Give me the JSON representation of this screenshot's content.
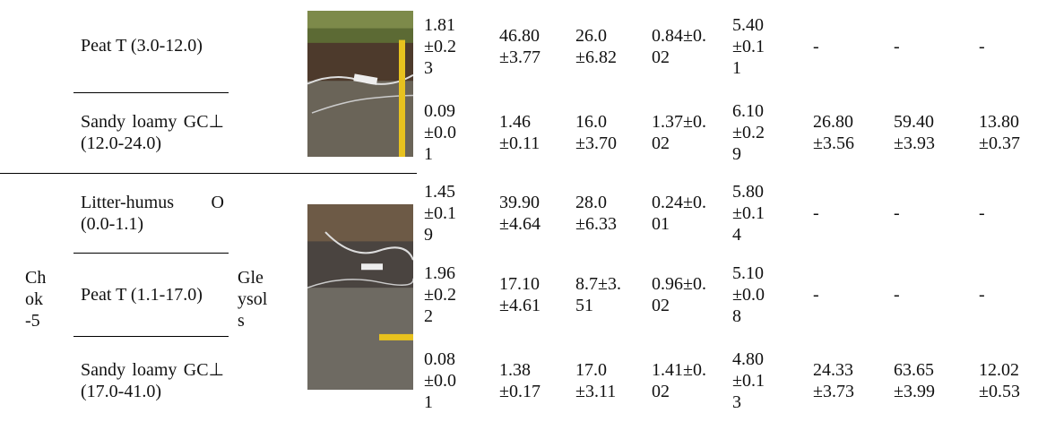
{
  "table": {
    "groups": [
      {
        "rows": [
          {
            "horizon": "Peat T (3.0-12.0)",
            "values": [
              "1.81±0.23",
              "46.80±3.77",
              "26.0±6.82",
              "0.84±0.02",
              "5.40±0.11",
              "-",
              "-",
              "-"
            ]
          },
          {
            "horizon": "Sandy loamy GC⊥ (12.0-24.0)",
            "values": [
              "0.09±0.01",
              "1.46±0.11",
              "16.0±3.70",
              "1.37±0.02",
              "6.10±0.29",
              "26.80±3.56",
              "59.40±3.93",
              "13.80±0.37"
            ]
          }
        ]
      },
      {
        "site": "Chok-5",
        "soil": "Gleysols",
        "rows": [
          {
            "horizon": "Litter-humus O (0.0-1.1)",
            "values": [
              "1.45±0.19",
              "39.90±4.64",
              "28.0±6.33",
              "0.24±0.01",
              "5.80±0.14",
              "-",
              "-",
              "-"
            ]
          },
          {
            "horizon": "Peat T (1.1-17.0)",
            "values": [
              "1.96±0.22",
              "17.10±4.61",
              "8.7±3.51",
              "0.96±0.02",
              "5.10±0.08",
              "-",
              "-",
              "-"
            ]
          },
          {
            "horizon": "Sandy loamy GC⊥ (17.0-41.0)",
            "values": [
              "0.08±0.01",
              "1.38±0.17",
              "17.0±3.11",
              "1.41±0.02",
              "4.80±0.13",
              "24.33±3.73",
              "63.65±3.99",
              "12.02±0.53"
            ]
          }
        ]
      }
    ]
  }
}
